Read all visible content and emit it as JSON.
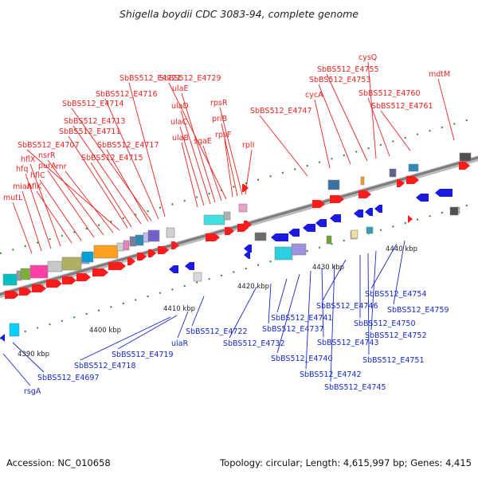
{
  "title": "Shigella boydii CDC 3083-94, complete genome",
  "footer": {
    "accession": "Accession: NC_010658",
    "summary": "Topology: circular; Length: 4,615,997 bp; Genes: 4,415"
  },
  "colors": {
    "forward_label": "#e8231f",
    "reverse_label": "#1528c9",
    "forward_arrow": "#ff1b1b",
    "reverse_arrow": "#1a1ae0"
  },
  "scale_labels": [
    "4390 kbp",
    "4400 kbp",
    "4410 kbp",
    "4420 kbp",
    "4430 kbp",
    "4440 kbp"
  ],
  "forward_labels": [
    "mutL",
    "miaA",
    "hfq",
    "hflX",
    "hflK",
    "hflC",
    "purA",
    "nsrR",
    "rnr",
    "SbBS512_E4707",
    "SbBS512_E4715",
    "SbBS512_E4711",
    "SbBS512_E4713",
    "SbBS512_E4717",
    "SbBS512_E4714",
    "SbBS512_E4716",
    "SbBS512_E4721",
    "ulaB",
    "ulaC",
    "ulaD",
    "ulaE",
    "sgaE",
    "SbBS512_E4729",
    "rpsF",
    "priB",
    "rpsR",
    "rplI",
    "SbBS512_E4747",
    "cycA",
    "SbBS512_E4753",
    "SbBS512_E4755",
    "cysQ",
    "SbBS512_E4760",
    "SbBS512_E4761",
    "mdtM"
  ],
  "reverse_labels": [
    "rsgA",
    "SbBS512_E4697",
    "SbBS512_E4718",
    "SbBS512_E4719",
    "ulaR",
    "SbBS512_E4722",
    "SbBS512_E4732",
    "SbBS512_E4737",
    "SbBS512_E4741",
    "SbBS512_E4740",
    "SbBS512_E4742",
    "SbBS512_E4743",
    "SbBS512_E4745",
    "SbBS512_E4746",
    "SbBS512_E4750",
    "SbBS512_E4751",
    "SbBS512_E4752",
    "SbBS512_E4754",
    "SbBS512_E4759"
  ]
}
